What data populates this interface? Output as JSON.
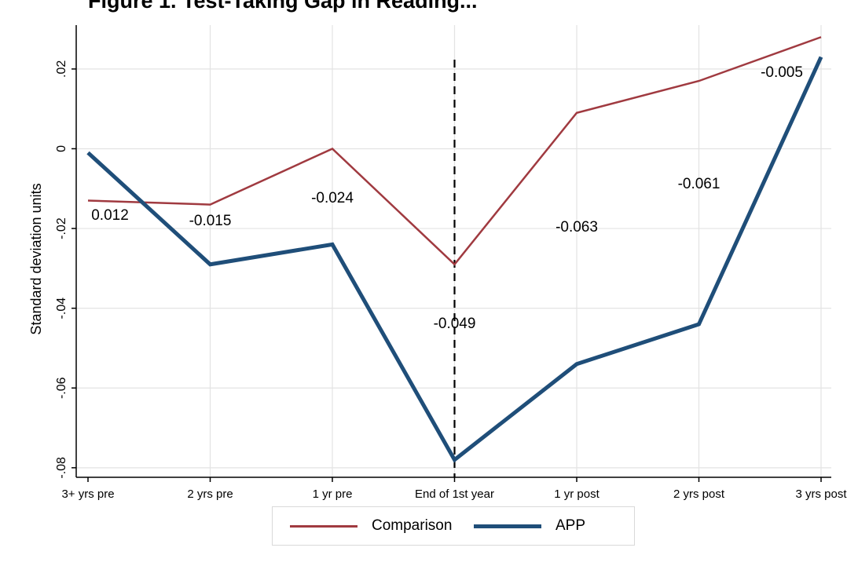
{
  "title_fragment": "Figure 1. Test-Taking Gap in Reading...",
  "chart_data": {
    "type": "line",
    "categories": [
      "3+ yrs pre",
      "2 yrs pre",
      "1 yr pre",
      "End of 1st year",
      "1 yr post",
      "2 yrs post",
      "3 yrs post"
    ],
    "ylabel": "Standard deviation units",
    "xlabel": "",
    "ylim": [
      -0.082,
      0.031
    ],
    "yticks": [
      -0.08,
      -0.06,
      -0.04,
      -0.02,
      0,
      0.02
    ],
    "ytick_labels": [
      "-.08",
      "-.06",
      "-.04",
      "-.02",
      "0",
      ".02"
    ],
    "grid": true,
    "legend_position": "bottom",
    "vertical_marker": {
      "category": "End of 1st year",
      "style": "dashed"
    },
    "series": [
      {
        "name": "Comparison",
        "color": "#a03a40",
        "values": [
          -0.013,
          -0.014,
          0.0,
          -0.029,
          0.009,
          0.017,
          0.028
        ]
      },
      {
        "name": "APP",
        "color": "#1f4e79",
        "values": [
          -0.001,
          -0.029,
          -0.024,
          -0.078,
          -0.054,
          -0.044,
          0.023
        ]
      }
    ],
    "gap_labels": [
      "0.012",
      "-0.015",
      "-0.024",
      "-0.049",
      "-0.063",
      "-0.061",
      "-0.005"
    ]
  },
  "legend": {
    "comparison_label": "Comparison",
    "app_label": "APP"
  }
}
